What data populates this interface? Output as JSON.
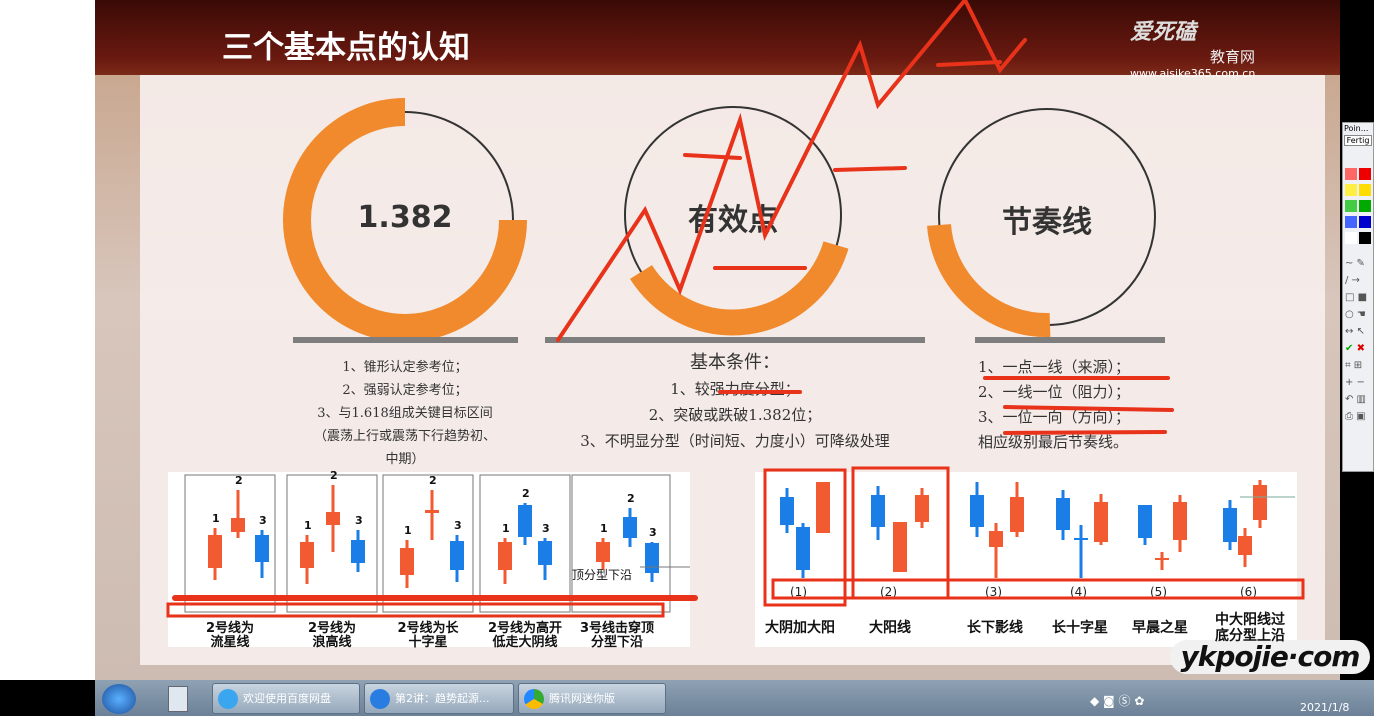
{
  "slide": {
    "title": "三个基本点的认知",
    "logo": {
      "brand": "爱死磕",
      "sub": "教育网",
      "url": "www.aisike365.com.cn"
    },
    "circles": [
      {
        "label": "1.382"
      },
      {
        "label": "有效点"
      },
      {
        "label": "节奏线"
      }
    ],
    "left_points": [
      "1、锥形认定参考位；",
      "2、强弱认定参考位；",
      "3、与1.618组成关键目标区间",
      "（震荡上行或震荡下行趋势初、",
      "中期）"
    ],
    "middle": {
      "heading": "基本条件：",
      "points": [
        "1、较强力度分型；",
        "2、突破或跌破1.382位；",
        "3、不明显分型（时间短、力度小）可降级处理"
      ]
    },
    "right_points": [
      "1、一点一线（来源）；",
      "2、一线一位（阻力）；",
      "3、一位一向（方向）；",
      "相应级别最后节奏线。"
    ],
    "top_pattern": {
      "annotation": "顶分型下沿",
      "numbers": [
        "1",
        "2",
        "3"
      ],
      "captions": [
        "2号线为\n流星线",
        "2号线为\n浪高线",
        "2号线为长\n十字星",
        "2号线为高开\n低走大阴线",
        "3号线击穿顶\n分型下沿"
      ]
    },
    "bottom_pattern": {
      "numbers": [
        "(1)",
        "(2)",
        "(3)",
        "(4)",
        "(5)",
        "(6)"
      ],
      "captions": [
        "大阴加大阳",
        "大阳线",
        "长下影线",
        "长十字星",
        "早晨之星",
        "中大阳线过\n底分型上沿"
      ]
    },
    "colors": {
      "orange": "#f08a2c",
      "up": "#f25a32",
      "down": "#1a7ee6",
      "annotation": "#e8321a"
    }
  },
  "toolbar": {
    "title": "Poin...",
    "button": "Fertig"
  },
  "taskbar": {
    "items": [
      "欢迎使用百度网盘",
      "第2讲：趋势起源...",
      "腾讯网迷你版"
    ],
    "clock": "2021/1/8"
  },
  "watermark": "ykpojie·com"
}
